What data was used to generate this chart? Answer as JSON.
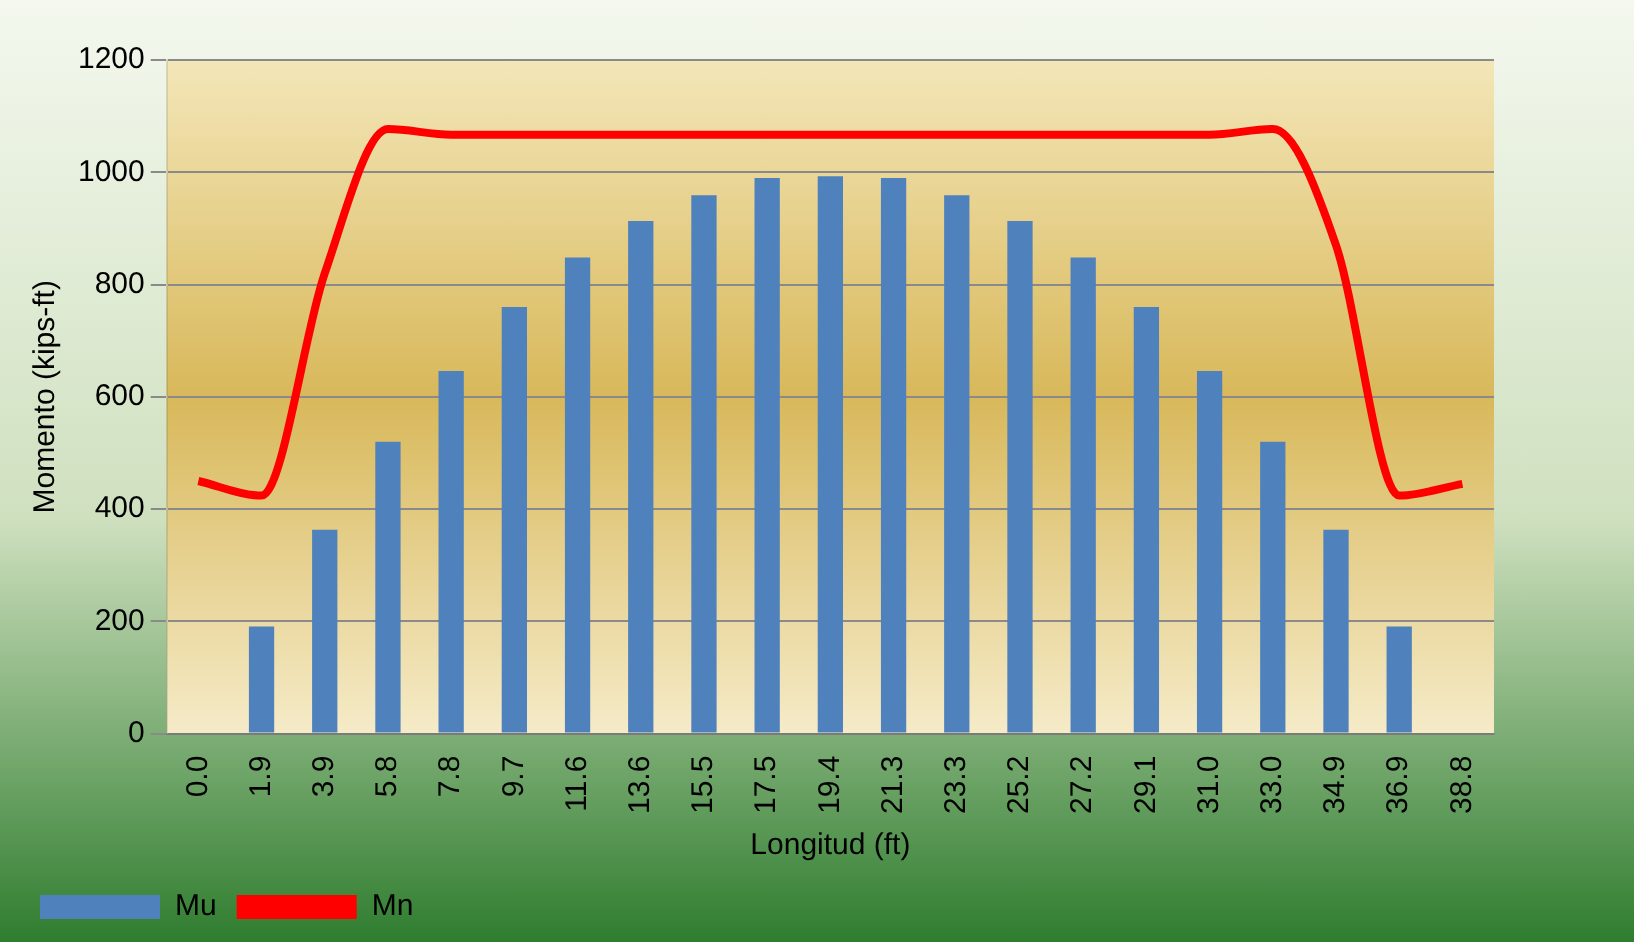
{
  "chart_data": {
    "type": "bar",
    "xlabel": "Longitud (ft)",
    "ylabel": "Momento (kips-ft)",
    "categories": [
      "0.0",
      "1.9",
      "3.9",
      "5.8",
      "7.8",
      "9.7",
      "11.6",
      "13.6",
      "15.5",
      "17.5",
      "19.4",
      "21.3",
      "23.3",
      "25.2",
      "27.2",
      "29.1",
      "31.0",
      "33.0",
      "34.9",
      "36.9",
      "38.8"
    ],
    "series": [
      {
        "name": "Mu",
        "color": "#4f81bd",
        "values": [
          0,
          191,
          363,
          520,
          646,
          760,
          848,
          913,
          959,
          990,
          993,
          990,
          959,
          913,
          848,
          760,
          646,
          520,
          363,
          191,
          0
        ]
      },
      {
        "name": "Mn",
        "type": "line",
        "color": "#ff0000",
        "values": [
          450,
          424,
          820,
          1077,
          1067,
          1067,
          1067,
          1067,
          1067,
          1067,
          1067,
          1067,
          1067,
          1067,
          1067,
          1067,
          1067,
          1077,
          870,
          424,
          445
        ]
      }
    ],
    "ylim": [
      0,
      1200
    ],
    "yticks": [
      0,
      200,
      400,
      600,
      800,
      1000,
      1200
    ],
    "grid": "y",
    "legend": "bottom",
    "marker": "none"
  }
}
